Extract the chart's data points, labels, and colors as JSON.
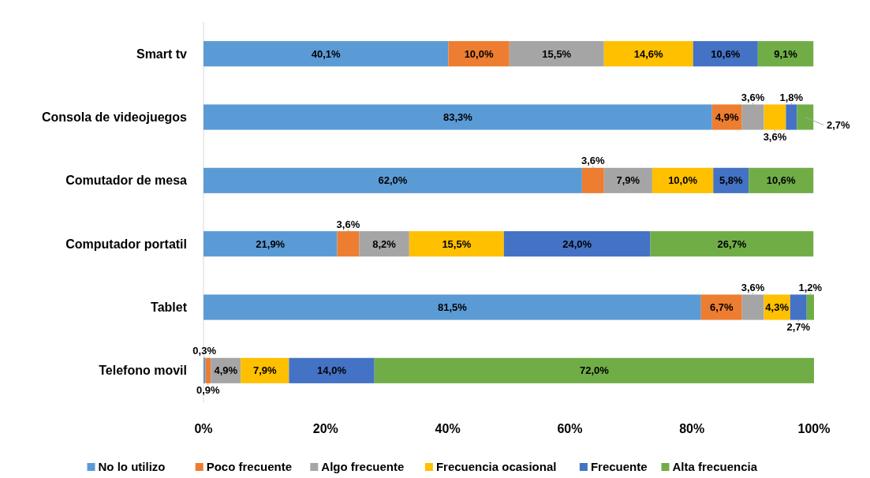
{
  "chart_data": {
    "type": "bar",
    "orientation": "horizontal",
    "stacked": true,
    "categories": [
      "Smart tv",
      "Consola de videojuegos",
      "Comutador de mesa",
      "Computador portatil",
      "Tablet",
      "Telefono movil"
    ],
    "xlim": [
      0,
      100
    ],
    "xticks": [
      {
        "value": 0,
        "label": "0%"
      },
      {
        "value": 20,
        "label": "20%"
      },
      {
        "value": 40,
        "label": "40%"
      },
      {
        "value": 60,
        "label": "60%"
      },
      {
        "value": 80,
        "label": "80%"
      },
      {
        "value": 100,
        "label": "100%"
      }
    ],
    "legend": "bottom",
    "grid": false,
    "series": [
      {
        "name": "No lo utilizo",
        "color": "#5b9bd5",
        "values": [
          40.1,
          83.3,
          62.0,
          21.9,
          81.5,
          0.3
        ],
        "value_labels": [
          "40,1%",
          "83,3%",
          "62,0%",
          "21,9%",
          "81,5%",
          "0,3%"
        ]
      },
      {
        "name": "Poco frecuente",
        "color": "#ed7d31",
        "values": [
          10.0,
          4.9,
          3.6,
          3.6,
          6.7,
          0.9
        ],
        "value_labels": [
          "10,0%",
          "4,9%",
          "3,6%",
          "3,6%",
          "6,7%",
          "0,9%"
        ]
      },
      {
        "name": "Algo frecuente",
        "color": "#a5a5a5",
        "values": [
          15.5,
          3.6,
          7.9,
          8.2,
          3.6,
          4.9
        ],
        "value_labels": [
          "15,5%",
          "3,6%",
          "7,9%",
          "8,2%",
          "3,6%",
          "4,9%"
        ]
      },
      {
        "name": "Frecuencia ocasional",
        "color": "#ffc000",
        "values": [
          14.6,
          3.6,
          10.0,
          15.5,
          4.3,
          7.9
        ],
        "value_labels": [
          "14,6%",
          "3,6%",
          "10,0%",
          "15,5%",
          "4,3%",
          "7,9%"
        ]
      },
      {
        "name": "Frecuente",
        "color": "#4472c4",
        "values": [
          10.6,
          1.8,
          5.8,
          24.0,
          2.7,
          14.0
        ],
        "value_labels": [
          "10,6%",
          "1,8%",
          "5,8%",
          "24,0%",
          "2,7%",
          "14,0%"
        ]
      },
      {
        "name": "Alta frecuencia",
        "color": "#70ad47",
        "values": [
          9.1,
          2.7,
          10.6,
          26.7,
          1.2,
          72.0
        ],
        "value_labels": [
          "9,1%",
          "2,7%",
          "10,6%",
          "26,7%",
          "1,2%",
          "72,0%"
        ]
      }
    ]
  }
}
